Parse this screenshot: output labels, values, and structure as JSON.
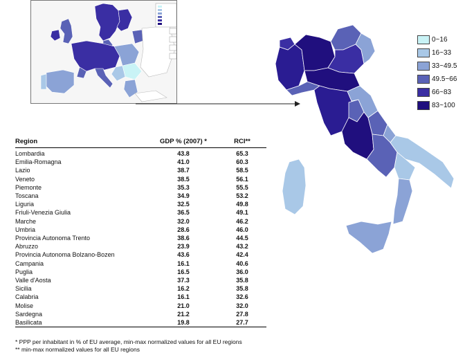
{
  "legend": {
    "items": [
      {
        "label": "0~16",
        "color": "#c9f3f6"
      },
      {
        "label": "16~33",
        "color": "#a9c8e7"
      },
      {
        "label": "33~49.5",
        "color": "#8ba3d6"
      },
      {
        "label": "49.5~66",
        "color": "#5a62b6"
      },
      {
        "label": "66~83",
        "color": "#3a2ea3"
      },
      {
        "label": "83~100",
        "color": "#200f7e"
      }
    ]
  },
  "table": {
    "headers": {
      "region": "Region",
      "gdp": "GDP % (2007) *",
      "rci": "RCI**"
    },
    "rows": [
      {
        "region": "Lombardia",
        "gdp": "43.8",
        "rci": "65.3"
      },
      {
        "region": "Emilia-Romagna",
        "gdp": "41.0",
        "rci": "60.3"
      },
      {
        "region": "Lazio",
        "gdp": "38.7",
        "rci": "58.5"
      },
      {
        "region": "Veneto",
        "gdp": "38.5",
        "rci": "56.1"
      },
      {
        "region": "Piemonte",
        "gdp": "35.3",
        "rci": "55.5"
      },
      {
        "region": "Toscana",
        "gdp": "34.9",
        "rci": "53.2"
      },
      {
        "region": "Liguria",
        "gdp": "32.5",
        "rci": "49.8"
      },
      {
        "region": "Friuli-Venezia Giulia",
        "gdp": "36.5",
        "rci": "49.1"
      },
      {
        "region": "Marche",
        "gdp": "32.0",
        "rci": "46.2"
      },
      {
        "region": "Umbria",
        "gdp": "28.6",
        "rci": "46.0"
      },
      {
        "region": "Provincia Autonoma Trento",
        "gdp": "38.6",
        "rci": "44.5"
      },
      {
        "region": "Abruzzo",
        "gdp": "23.9",
        "rci": "43.2"
      },
      {
        "region": "Provincia Autonoma Bolzano-Bozen",
        "gdp": "43.6",
        "rci": "42.4"
      },
      {
        "region": "Campania",
        "gdp": "16.1",
        "rci": "40.6"
      },
      {
        "region": "Puglia",
        "gdp": "16.5",
        "rci": "36.0"
      },
      {
        "region": "Valle d'Aosta",
        "gdp": "37.3",
        "rci": "35.8"
      },
      {
        "region": "Sicilia",
        "gdp": "16.2",
        "rci": "35.8"
      },
      {
        "region": "Calabria",
        "gdp": "16.1",
        "rci": "32.6"
      },
      {
        "region": "Molise",
        "gdp": "21.0",
        "rci": "32.0"
      },
      {
        "region": "Sardegna",
        "gdp": "21.2",
        "rci": "27.8"
      },
      {
        "region": "Basilicata",
        "gdp": "19.8",
        "rci": "27.7"
      }
    ]
  },
  "notes": {
    "note1": "* PPP per inhabitant in % of EU average, min-max normalized values for all EU regions",
    "note2": "** min-max normalized values for all EU regions"
  }
}
